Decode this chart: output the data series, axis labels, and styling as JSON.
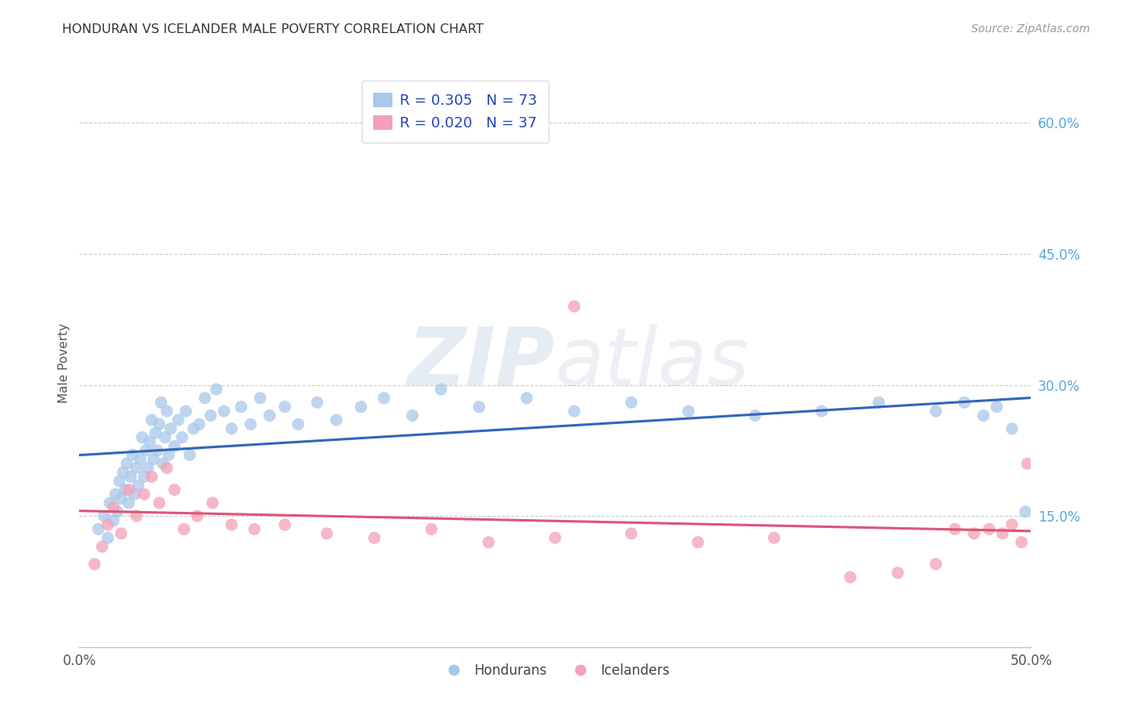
{
  "title": "HONDURAN VS ICELANDER MALE POVERTY CORRELATION CHART",
  "source": "Source: ZipAtlas.com",
  "ylabel": "Male Poverty",
  "xlim": [
    0.0,
    0.5
  ],
  "ylim": [
    0.0,
    0.65
  ],
  "x_ticks": [
    0.0,
    0.5
  ],
  "x_tick_labels": [
    "0.0%",
    "50.0%"
  ],
  "y_ticks_right": [
    0.15,
    0.3,
    0.45,
    0.6
  ],
  "y_tick_labels_right": [
    "15.0%",
    "30.0%",
    "45.0%",
    "60.0%"
  ],
  "legend_r1": "R = 0.305",
  "legend_n1": "N = 73",
  "legend_r2": "R = 0.020",
  "legend_n2": "N = 37",
  "color_blue": "#A8C8E8",
  "color_pink": "#F4A0B8",
  "line_color_blue": "#3366BB",
  "line_color_pink": "#DD5577",
  "watermark_zip": "ZIP",
  "watermark_atlas": "atlas",
  "background_color": "#FFFFFF",
  "grid_color": "#CCCCCC",
  "hondurans_x": [
    0.01,
    0.013,
    0.015,
    0.016,
    0.018,
    0.019,
    0.02,
    0.021,
    0.022,
    0.023,
    0.024,
    0.025,
    0.026,
    0.027,
    0.028,
    0.029,
    0.03,
    0.031,
    0.032,
    0.033,
    0.034,
    0.035,
    0.036,
    0.037,
    0.038,
    0.039,
    0.04,
    0.041,
    0.042,
    0.043,
    0.044,
    0.045,
    0.046,
    0.047,
    0.048,
    0.05,
    0.052,
    0.054,
    0.056,
    0.058,
    0.06,
    0.063,
    0.066,
    0.069,
    0.072,
    0.076,
    0.08,
    0.085,
    0.09,
    0.095,
    0.1,
    0.108,
    0.115,
    0.125,
    0.135,
    0.148,
    0.16,
    0.175,
    0.19,
    0.21,
    0.235,
    0.26,
    0.29,
    0.32,
    0.355,
    0.39,
    0.42,
    0.45,
    0.465,
    0.475,
    0.482,
    0.49,
    0.497
  ],
  "hondurans_y": [
    0.135,
    0.15,
    0.125,
    0.165,
    0.145,
    0.175,
    0.155,
    0.19,
    0.17,
    0.2,
    0.18,
    0.21,
    0.165,
    0.195,
    0.22,
    0.175,
    0.205,
    0.185,
    0.215,
    0.24,
    0.195,
    0.225,
    0.205,
    0.235,
    0.26,
    0.215,
    0.245,
    0.225,
    0.255,
    0.28,
    0.21,
    0.24,
    0.27,
    0.22,
    0.25,
    0.23,
    0.26,
    0.24,
    0.27,
    0.22,
    0.25,
    0.255,
    0.285,
    0.265,
    0.295,
    0.27,
    0.25,
    0.275,
    0.255,
    0.285,
    0.265,
    0.275,
    0.255,
    0.28,
    0.26,
    0.275,
    0.285,
    0.265,
    0.295,
    0.275,
    0.285,
    0.27,
    0.28,
    0.27,
    0.265,
    0.27,
    0.28,
    0.27,
    0.28,
    0.265,
    0.275,
    0.25,
    0.155
  ],
  "icelanders_x": [
    0.008,
    0.012,
    0.015,
    0.018,
    0.022,
    0.026,
    0.03,
    0.034,
    0.038,
    0.042,
    0.046,
    0.05,
    0.055,
    0.062,
    0.07,
    0.08,
    0.092,
    0.108,
    0.13,
    0.155,
    0.185,
    0.215,
    0.25,
    0.26,
    0.29,
    0.325,
    0.365,
    0.405,
    0.43,
    0.45,
    0.46,
    0.47,
    0.478,
    0.485,
    0.49,
    0.495,
    0.498
  ],
  "icelanders_y": [
    0.095,
    0.115,
    0.14,
    0.16,
    0.13,
    0.18,
    0.15,
    0.175,
    0.195,
    0.165,
    0.205,
    0.18,
    0.135,
    0.15,
    0.165,
    0.14,
    0.135,
    0.14,
    0.13,
    0.125,
    0.135,
    0.12,
    0.125,
    0.39,
    0.13,
    0.12,
    0.125,
    0.08,
    0.085,
    0.095,
    0.135,
    0.13,
    0.135,
    0.13,
    0.14,
    0.12,
    0.21
  ]
}
